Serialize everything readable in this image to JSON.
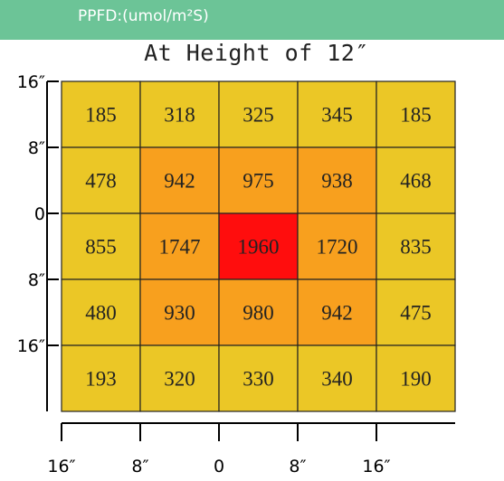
{
  "header": {
    "label": "PPFD:(umol/m²S)"
  },
  "chart_data": {
    "type": "heatmap",
    "title": "At Height of 12″",
    "unit": "PPFD:(umol/m²S)",
    "x_ticks": [
      "16″",
      "8″",
      "0",
      "8″",
      "16″"
    ],
    "y_ticks": [
      "16″",
      "8″",
      "0",
      "8″",
      "16″"
    ],
    "values": [
      [
        185,
        318,
        325,
        345,
        185
      ],
      [
        478,
        942,
        975,
        938,
        468
      ],
      [
        855,
        1747,
        1960,
        1720,
        835
      ],
      [
        480,
        930,
        980,
        942,
        475
      ],
      [
        193,
        320,
        330,
        340,
        190
      ]
    ],
    "colors": {
      "low": "#ebc726",
      "mid": "#f8a01e",
      "high": "#ff0d0d",
      "grid": "#222222",
      "axis": "#000000"
    }
  }
}
